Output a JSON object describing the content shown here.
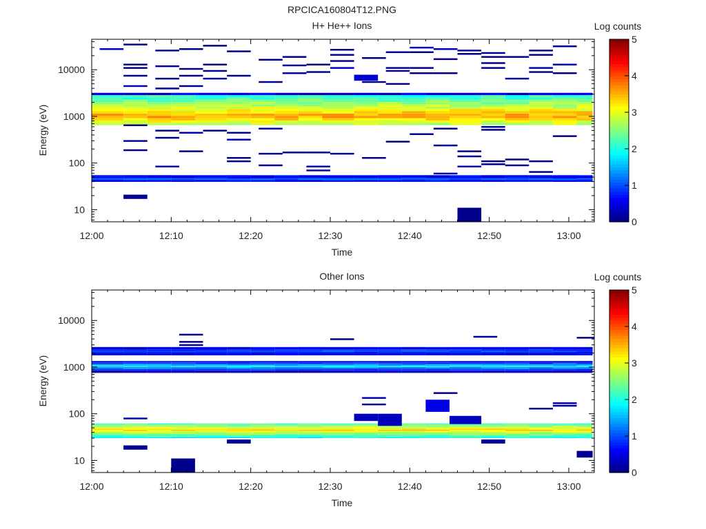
{
  "figure": {
    "title": "RPCICA160804T12.PNG"
  },
  "chart_data": [
    {
      "type": "heatmap",
      "title": "H+ He++ Ions",
      "xlabel": "Time",
      "ylabel": "Energy (eV)",
      "x_ticks": [
        "12:00",
        "12:10",
        "12:20",
        "12:30",
        "12:40",
        "12:50",
        "13:00"
      ],
      "xlim": [
        "12:00",
        "13:03"
      ],
      "y_scale": "log",
      "y_ticks": [
        "10",
        "100",
        "1000",
        "10000"
      ],
      "ylim": [
        5.5,
        45000
      ],
      "colorbar": {
        "label": "Log counts",
        "ticks": [
          "0",
          "1",
          "2",
          "3",
          "4",
          "5"
        ],
        "range": [
          0,
          5
        ],
        "colormap": "jet"
      },
      "time_bins": [
        "12:00",
        "12:04",
        "12:07",
        "12:10",
        "12:13",
        "12:17",
        "12:20",
        "12:23",
        "12:26",
        "12:29",
        "12:33",
        "12:36",
        "12:39",
        "12:42",
        "12:45",
        "12:49",
        "12:52",
        "12:55",
        "12:58",
        "13:01"
      ],
      "main_band": {
        "emin": 650,
        "emax": 3200,
        "peak_energy": 1000,
        "peak_log_counts": 3.6
      },
      "low_band": {
        "emin": 40,
        "emax": 55,
        "log_counts": 0.8
      },
      "sparse_lines": [
        {
          "t": "12:01",
          "e": 28000
        },
        {
          "t": "12:04",
          "e": 35000
        },
        {
          "t": "12:04",
          "e": 13000
        },
        {
          "t": "12:04",
          "e": 11000
        },
        {
          "t": "12:04",
          "e": 7500
        },
        {
          "t": "12:04",
          "e": 4500
        },
        {
          "t": "12:04",
          "e": 650
        },
        {
          "t": "12:04",
          "e": 300
        },
        {
          "t": "12:04",
          "e": 190
        },
        {
          "t": "12:08",
          "e": 26000
        },
        {
          "t": "12:08",
          "e": 12000
        },
        {
          "t": "12:08",
          "e": 6500
        },
        {
          "t": "12:08",
          "e": 4000
        },
        {
          "t": "12:08",
          "e": 500
        },
        {
          "t": "12:08",
          "e": 350
        },
        {
          "t": "12:08",
          "e": 85
        },
        {
          "t": "12:11",
          "e": 28000
        },
        {
          "t": "12:11",
          "e": 10500
        },
        {
          "t": "12:11",
          "e": 7500
        },
        {
          "t": "12:11",
          "e": 4500
        },
        {
          "t": "12:11",
          "e": 450
        },
        {
          "t": "12:11",
          "e": 180
        },
        {
          "t": "12:14",
          "e": 33000
        },
        {
          "t": "12:14",
          "e": 13000
        },
        {
          "t": "12:14",
          "e": 9500
        },
        {
          "t": "12:14",
          "e": 6500
        },
        {
          "t": "12:14",
          "e": 500
        },
        {
          "t": "12:17",
          "e": 25000
        },
        {
          "t": "12:17",
          "e": 7500
        },
        {
          "t": "12:17",
          "e": 450
        },
        {
          "t": "12:17",
          "e": 320
        },
        {
          "t": "12:17",
          "e": 130
        },
        {
          "t": "12:17",
          "e": 110
        },
        {
          "t": "12:21",
          "e": 16500
        },
        {
          "t": "12:21",
          "e": 5500
        },
        {
          "t": "12:21",
          "e": 550
        },
        {
          "t": "12:21",
          "e": 160
        },
        {
          "t": "12:21",
          "e": 90
        },
        {
          "t": "12:24",
          "e": 19000
        },
        {
          "t": "12:24",
          "e": 12500
        },
        {
          "t": "12:24",
          "e": 8500
        },
        {
          "t": "12:24",
          "e": 170
        },
        {
          "t": "12:27",
          "e": 13000
        },
        {
          "t": "12:27",
          "e": 9000
        },
        {
          "t": "12:27",
          "e": 170
        },
        {
          "t": "12:27",
          "e": 85
        },
        {
          "t": "12:27",
          "e": 70
        },
        {
          "t": "12:30",
          "e": 27000
        },
        {
          "t": "12:30",
          "e": 21000
        },
        {
          "t": "12:30",
          "e": 15500
        },
        {
          "t": "12:30",
          "e": 11000
        },
        {
          "t": "12:30",
          "e": 160
        },
        {
          "t": "12:34",
          "e": 18000
        },
        {
          "t": "12:34",
          "e": 5500
        },
        {
          "t": "12:34",
          "e": 130
        },
        {
          "t": "12:37",
          "e": 24000
        },
        {
          "t": "12:37",
          "e": 11000
        },
        {
          "t": "12:37",
          "e": 9500
        },
        {
          "t": "12:37",
          "e": 5000
        },
        {
          "t": "12:37",
          "e": 290
        },
        {
          "t": "12:40",
          "e": 30000
        },
        {
          "t": "12:40",
          "e": 24000
        },
        {
          "t": "12:40",
          "e": 11000
        },
        {
          "t": "12:40",
          "e": 8500
        },
        {
          "t": "12:40",
          "e": 420
        },
        {
          "t": "12:43",
          "e": 28000
        },
        {
          "t": "12:43",
          "e": 17000
        },
        {
          "t": "12:43",
          "e": 8500
        },
        {
          "t": "12:43",
          "e": 550
        },
        {
          "t": "12:43",
          "e": 240
        },
        {
          "t": "12:43",
          "e": 60
        },
        {
          "t": "12:46",
          "e": 26000
        },
        {
          "t": "12:46",
          "e": 22000
        },
        {
          "t": "12:46",
          "e": 180
        },
        {
          "t": "12:46",
          "e": 140
        },
        {
          "t": "12:46",
          "e": 85
        },
        {
          "t": "12:49",
          "e": 23000
        },
        {
          "t": "12:49",
          "e": 19000
        },
        {
          "t": "12:49",
          "e": 14000
        },
        {
          "t": "12:49",
          "e": 11000
        },
        {
          "t": "12:49",
          "e": 600
        },
        {
          "t": "12:49",
          "e": 520
        },
        {
          "t": "12:49",
          "e": 110
        },
        {
          "t": "12:49",
          "e": 95
        },
        {
          "t": "12:52",
          "e": 19000
        },
        {
          "t": "12:52",
          "e": 6500
        },
        {
          "t": "12:52",
          "e": 120
        },
        {
          "t": "12:52",
          "e": 90
        },
        {
          "t": "12:55",
          "e": 26000
        },
        {
          "t": "12:55",
          "e": 21000
        },
        {
          "t": "12:55",
          "e": 11000
        },
        {
          "t": "12:55",
          "e": 9000
        },
        {
          "t": "12:55",
          "e": 110
        },
        {
          "t": "12:55",
          "e": 65
        },
        {
          "t": "12:58",
          "e": 32000
        },
        {
          "t": "12:58",
          "e": 13000
        },
        {
          "t": "12:58",
          "e": 8500
        },
        {
          "t": "12:58",
          "e": 380
        }
      ],
      "blocks": [
        {
          "t0": "12:04",
          "t1": "12:07",
          "emin": 17,
          "emax": 21,
          "log_counts": 0.1
        },
        {
          "t0": "12:33",
          "t1": "12:36",
          "emin": 5800,
          "emax": 7800,
          "log_counts": 0.4
        },
        {
          "t0": "12:46",
          "t1": "12:49",
          "emin": 5.5,
          "emax": 11,
          "log_counts": 0.05
        }
      ]
    },
    {
      "type": "heatmap",
      "title": "Other Ions",
      "xlabel": "Time",
      "ylabel": "Energy (eV)",
      "x_ticks": [
        "12:00",
        "12:10",
        "12:20",
        "12:30",
        "12:40",
        "12:50",
        "13:00"
      ],
      "xlim": [
        "12:00",
        "13:03"
      ],
      "y_scale": "log",
      "y_ticks": [
        "10",
        "100",
        "1000",
        "10000"
      ],
      "ylim": [
        5.5,
        45000
      ],
      "colorbar": {
        "label": "Log counts",
        "ticks": [
          "0",
          "1",
          "2",
          "3",
          "4",
          "5"
        ],
        "range": [
          0,
          5
        ],
        "colormap": "jet"
      },
      "time_bins": [
        "12:00",
        "12:04",
        "12:07",
        "12:10",
        "12:13",
        "12:17",
        "12:20",
        "12:23",
        "12:26",
        "12:29",
        "12:33",
        "12:36",
        "12:39",
        "12:42",
        "12:45",
        "12:49",
        "12:52",
        "12:55",
        "12:58",
        "13:01"
      ],
      "upper_band": {
        "emin": 1800,
        "emax": 2700,
        "log_counts": 0.5
      },
      "mid_band": {
        "emin": 750,
        "emax": 1350,
        "peak_log_counts": 1.8
      },
      "low_band": {
        "emin": 30,
        "emax": 62,
        "peak_energy": 45,
        "peak_log_counts": 3.3
      },
      "sparse_lines": [
        {
          "t": "12:04",
          "e": 80
        },
        {
          "t": "12:11",
          "e": 5000
        },
        {
          "t": "12:11",
          "e": 3500
        },
        {
          "t": "12:11",
          "e": 3000
        },
        {
          "t": "12:30",
          "e": 4000
        },
        {
          "t": "12:34",
          "e": 220
        },
        {
          "t": "12:34",
          "e": 160
        },
        {
          "t": "12:43",
          "e": 280
        },
        {
          "t": "12:48",
          "e": 4500
        },
        {
          "t": "12:55",
          "e": 130
        },
        {
          "t": "12:58",
          "e": 170
        },
        {
          "t": "12:58",
          "e": 150
        },
        {
          "t": "13:01",
          "e": 4300
        }
      ],
      "blocks": [
        {
          "t0": "12:04",
          "t1": "12:07",
          "emin": 17,
          "emax": 21,
          "log_counts": 0.1
        },
        {
          "t0": "12:10",
          "t1": "12:13",
          "emin": 5.5,
          "emax": 11,
          "log_counts": 0.05
        },
        {
          "t0": "12:17",
          "t1": "12:20",
          "emin": 23,
          "emax": 28,
          "log_counts": 0.1
        },
        {
          "t0": "12:33",
          "t1": "12:36",
          "emin": 70,
          "emax": 100,
          "log_counts": 0.3
        },
        {
          "t0": "12:36",
          "t1": "12:39",
          "emin": 55,
          "emax": 100,
          "log_counts": 0.3
        },
        {
          "t0": "12:42",
          "t1": "12:45",
          "emin": 110,
          "emax": 200,
          "log_counts": 0.5
        },
        {
          "t0": "12:45",
          "t1": "12:49",
          "emin": 60,
          "emax": 90,
          "log_counts": 0.3
        },
        {
          "t0": "12:49",
          "t1": "12:52",
          "emin": 23,
          "emax": 28,
          "log_counts": 0.1
        },
        {
          "t0": "13:01",
          "t1": "13:03",
          "emin": 11.5,
          "emax": 16,
          "log_counts": 0.1
        }
      ]
    }
  ]
}
